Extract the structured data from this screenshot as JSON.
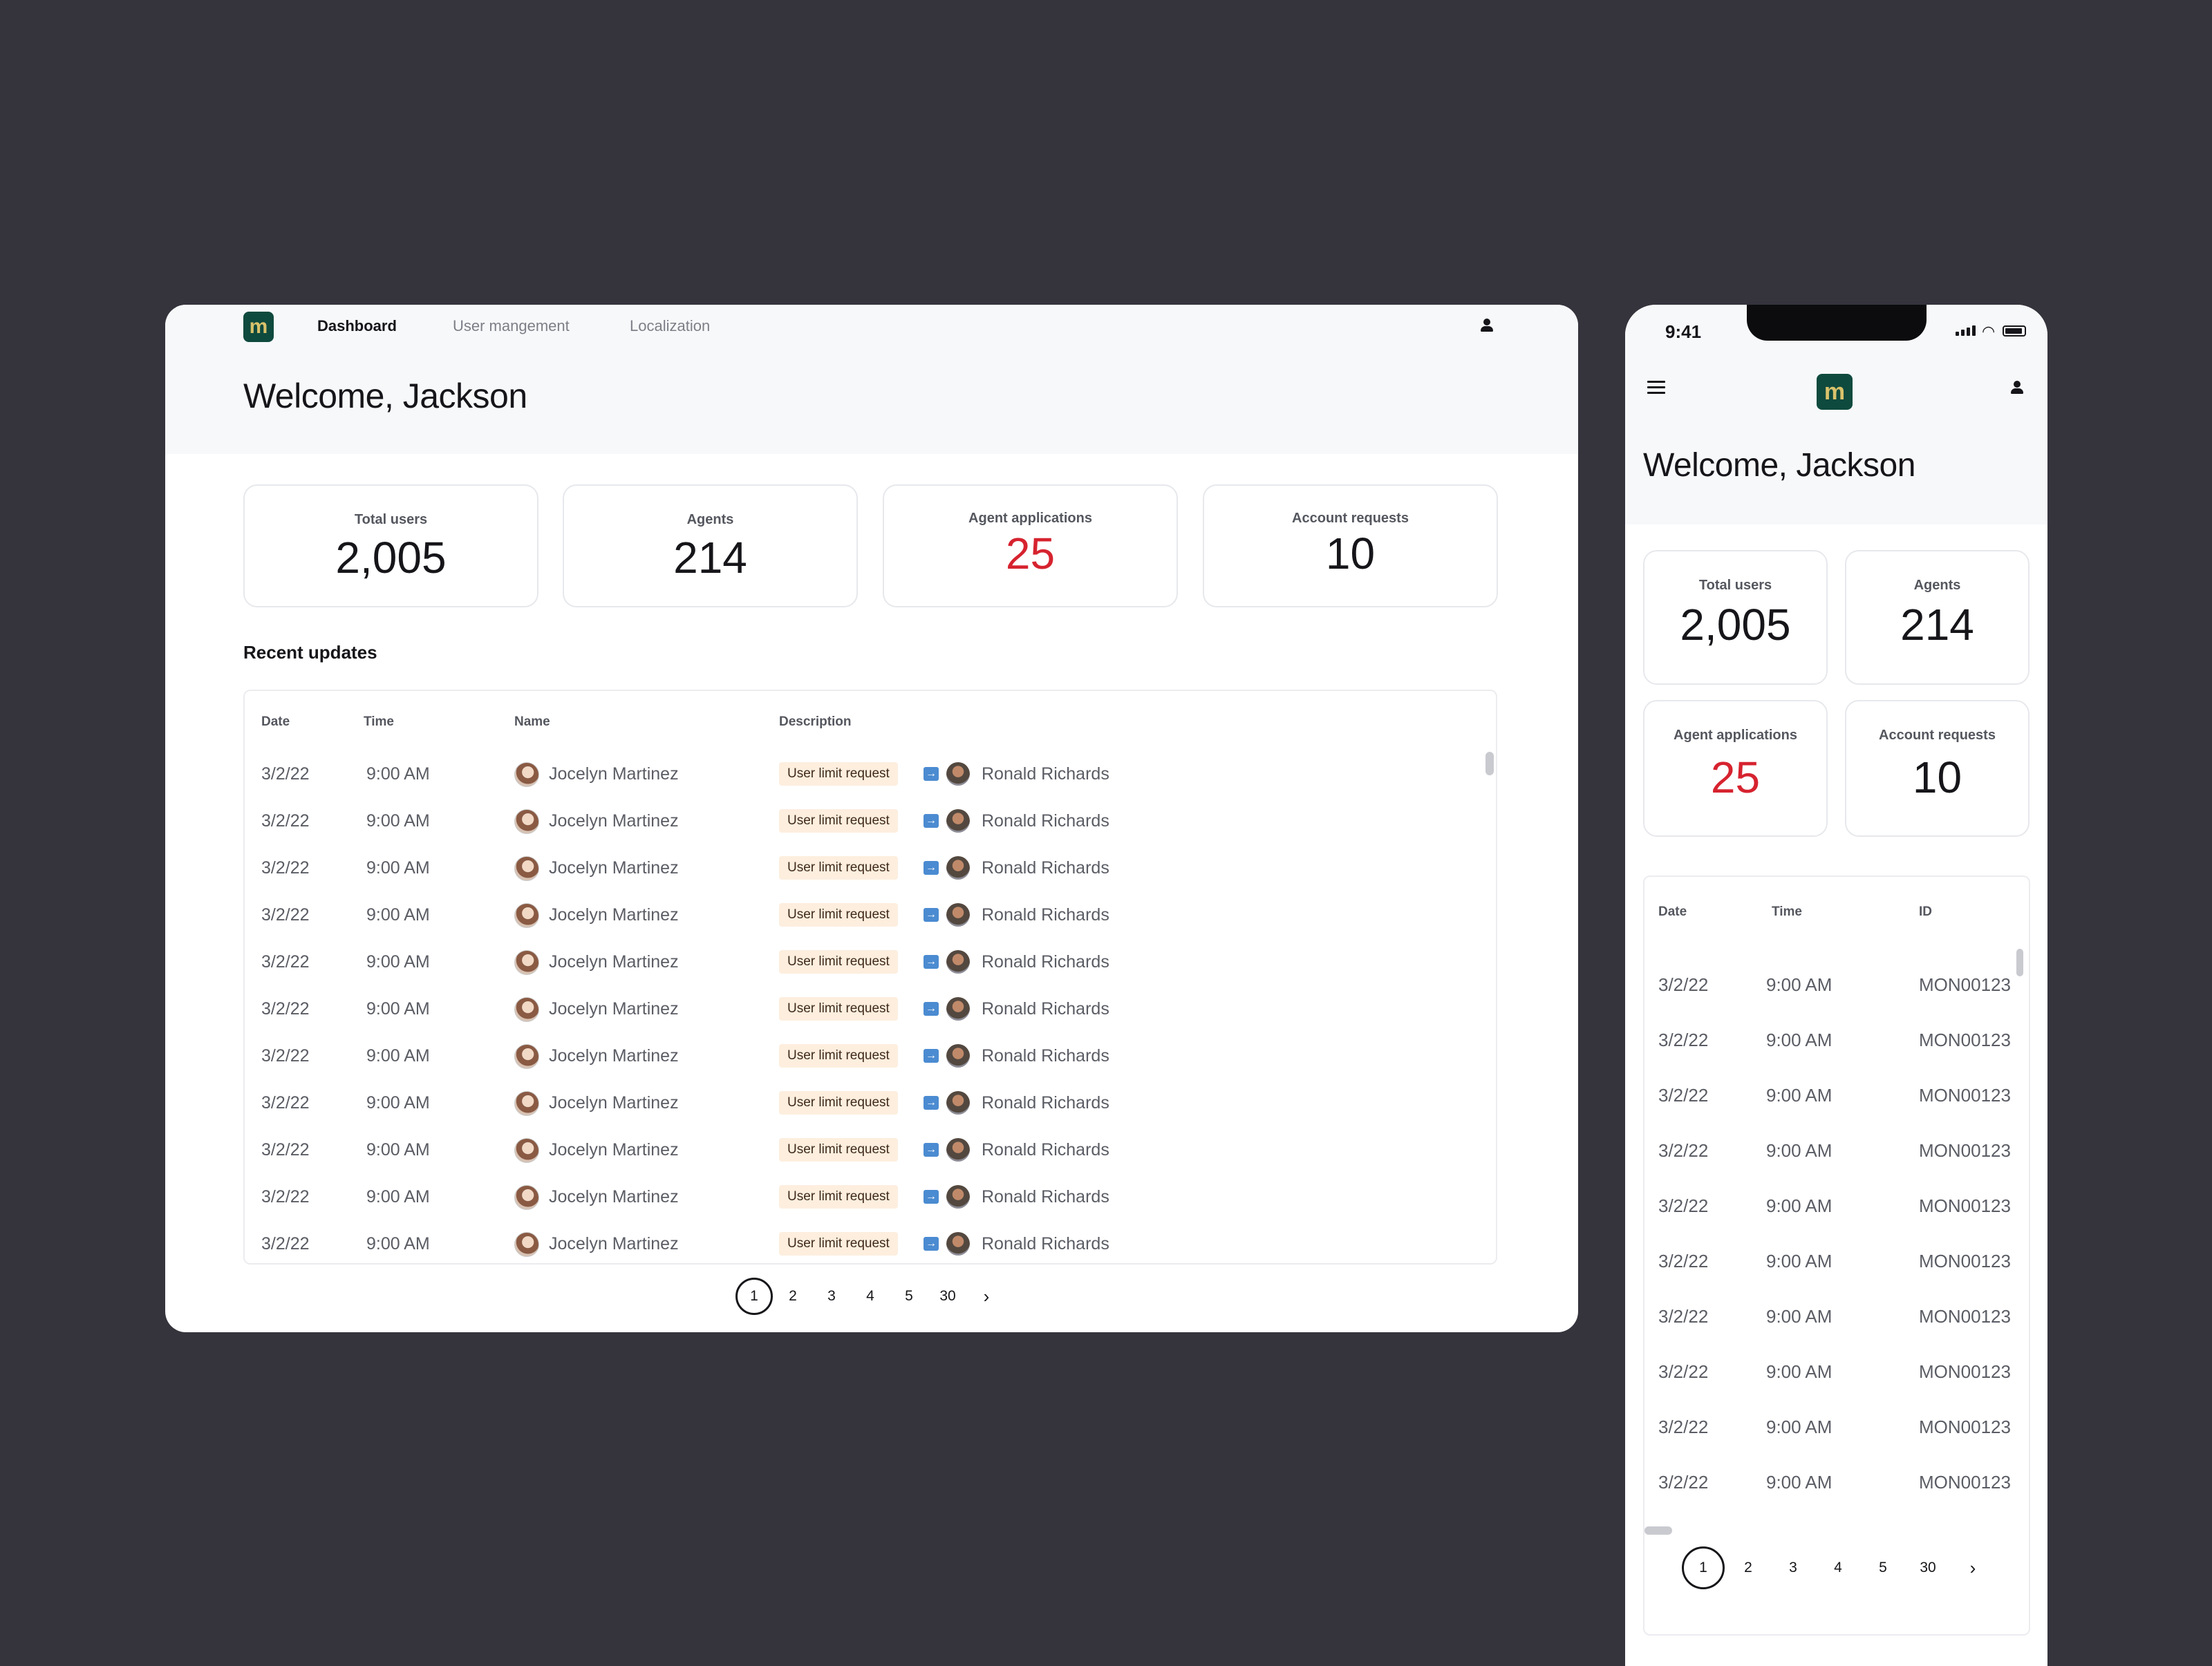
{
  "desktop": {
    "nav": {
      "items": [
        {
          "label": "Dashboard",
          "active": true
        },
        {
          "label": "User mangement",
          "active": false
        },
        {
          "label": "Localization",
          "active": false
        }
      ]
    },
    "logo_letter": "m",
    "welcome": "Welcome, Jackson",
    "stats": [
      {
        "label": "Total users",
        "value": "2,005",
        "highlight": false
      },
      {
        "label": "Agents",
        "value": "214",
        "highlight": false
      },
      {
        "label": "Agent applications",
        "value": "25",
        "highlight": true
      },
      {
        "label": "Account requests",
        "value": "10",
        "highlight": false
      }
    ],
    "recent_updates_title": "Recent updates",
    "table": {
      "headers": [
        "Date",
        "Time",
        "Name",
        "Description"
      ],
      "rows": [
        {
          "date": "3/2/22",
          "time": "9:00 AM",
          "name": "Jocelyn Martinez",
          "badge": "User limit request",
          "target": "Ronald Richards"
        },
        {
          "date": "3/2/22",
          "time": "9:00 AM",
          "name": "Jocelyn Martinez",
          "badge": "User limit request",
          "target": "Ronald Richards"
        },
        {
          "date": "3/2/22",
          "time": "9:00 AM",
          "name": "Jocelyn Martinez",
          "badge": "User limit request",
          "target": "Ronald Richards"
        },
        {
          "date": "3/2/22",
          "time": "9:00 AM",
          "name": "Jocelyn Martinez",
          "badge": "User limit request",
          "target": "Ronald Richards"
        },
        {
          "date": "3/2/22",
          "time": "9:00 AM",
          "name": "Jocelyn Martinez",
          "badge": "User limit request",
          "target": "Ronald Richards"
        },
        {
          "date": "3/2/22",
          "time": "9:00 AM",
          "name": "Jocelyn Martinez",
          "badge": "User limit request",
          "target": "Ronald Richards"
        },
        {
          "date": "3/2/22",
          "time": "9:00 AM",
          "name": "Jocelyn Martinez",
          "badge": "User limit request",
          "target": "Ronald Richards"
        },
        {
          "date": "3/2/22",
          "time": "9:00 AM",
          "name": "Jocelyn Martinez",
          "badge": "User limit request",
          "target": "Ronald Richards"
        },
        {
          "date": "3/2/22",
          "time": "9:00 AM",
          "name": "Jocelyn Martinez",
          "badge": "User limit request",
          "target": "Ronald Richards"
        },
        {
          "date": "3/2/22",
          "time": "9:00 AM",
          "name": "Jocelyn Martinez",
          "badge": "User limit request",
          "target": "Ronald Richards"
        },
        {
          "date": "3/2/22",
          "time": "9:00 AM",
          "name": "Jocelyn Martinez",
          "badge": "User limit request",
          "target": "Ronald Richards"
        }
      ]
    },
    "pagination": {
      "pages": [
        "1",
        "2",
        "3",
        "4",
        "5",
        "30"
      ],
      "current": "1",
      "next_icon": "chevron-right-icon"
    }
  },
  "mobile": {
    "status_time": "9:41",
    "logo_letter": "m",
    "welcome": "Welcome, Jackson",
    "stats": [
      {
        "label": "Total users",
        "value": "2,005",
        "highlight": false
      },
      {
        "label": "Agents",
        "value": "214",
        "highlight": false
      },
      {
        "label": "Agent applications",
        "value": "25",
        "highlight": true
      },
      {
        "label": "Account requests",
        "value": "10",
        "highlight": false
      }
    ],
    "table": {
      "headers": [
        "Date",
        "Time",
        "ID"
      ],
      "rows": [
        {
          "date": "3/2/22",
          "time": "9:00 AM",
          "id": "MON00123"
        },
        {
          "date": "3/2/22",
          "time": "9:00 AM",
          "id": "MON00123"
        },
        {
          "date": "3/2/22",
          "time": "9:00 AM",
          "id": "MON00123"
        },
        {
          "date": "3/2/22",
          "time": "9:00 AM",
          "id": "MON00123"
        },
        {
          "date": "3/2/22",
          "time": "9:00 AM",
          "id": "MON00123"
        },
        {
          "date": "3/2/22",
          "time": "9:00 AM",
          "id": "MON00123"
        },
        {
          "date": "3/2/22",
          "time": "9:00 AM",
          "id": "MON00123"
        },
        {
          "date": "3/2/22",
          "time": "9:00 AM",
          "id": "MON00123"
        },
        {
          "date": "3/2/22",
          "time": "9:00 AM",
          "id": "MON00123"
        },
        {
          "date": "3/2/22",
          "time": "9:00 AM",
          "id": "MON00123"
        }
      ]
    },
    "pagination": {
      "pages": [
        "1",
        "2",
        "3",
        "4",
        "5",
        "30"
      ],
      "current": "1",
      "next_icon": "chevron-right-icon"
    }
  },
  "colors": {
    "brand": "#0f4a3e",
    "brand_accent": "#d9c26b",
    "alert": "#d6232f",
    "badge_bg": "#fdeede",
    "background": "#35343d"
  }
}
